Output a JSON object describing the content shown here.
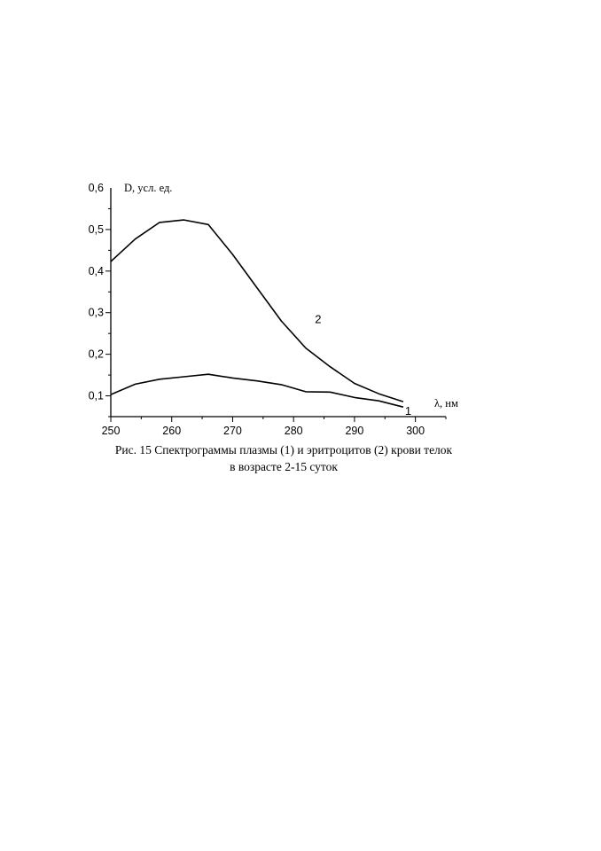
{
  "chart_data": {
    "type": "line",
    "ylabel": "D, усл. ед.",
    "xlabel": "λ, нм",
    "xlim": [
      250,
      305
    ],
    "ylim": [
      0.05,
      0.6
    ],
    "x_ticks": [
      "250",
      "260",
      "270",
      "280",
      "290",
      "300"
    ],
    "y_ticks": [
      "0,1",
      "0,2",
      "0,3",
      "0,4",
      "0,5",
      "0,6"
    ],
    "series": [
      {
        "name": "1",
        "x": [
          250,
          254,
          258,
          262,
          266,
          270,
          274,
          278,
          282,
          286,
          290,
          294,
          298
        ],
        "y": [
          0.103,
          0.128,
          0.14,
          0.146,
          0.152,
          0.143,
          0.136,
          0.127,
          0.11,
          0.109,
          0.096,
          0.088,
          0.073
        ]
      },
      {
        "name": "2",
        "x": [
          250,
          254,
          258,
          262,
          266,
          270,
          274,
          278,
          282,
          286,
          290,
          294,
          298
        ],
        "y": [
          0.423,
          0.477,
          0.517,
          0.523,
          0.512,
          0.44,
          0.36,
          0.28,
          0.215,
          0.17,
          0.13,
          0.105,
          0.086
        ]
      }
    ]
  },
  "caption": {
    "line1": "Рис. 15 Спектрограммы плазмы (1) и эритроцитов (2) крови телок",
    "line2": "в возрасте 2-15 суток"
  }
}
